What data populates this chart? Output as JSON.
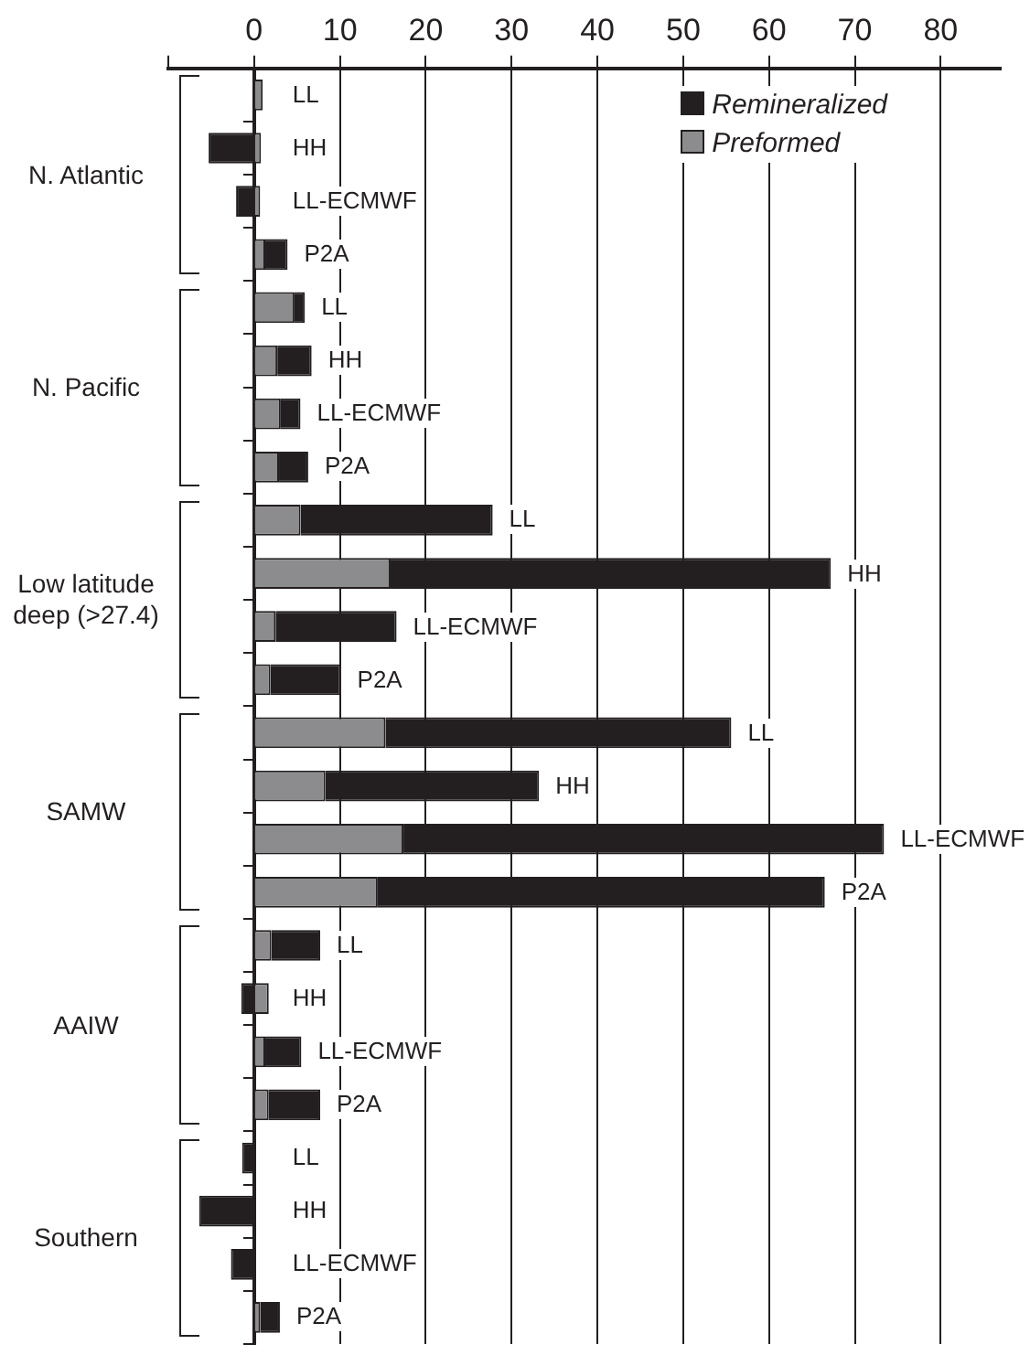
{
  "chart_data": {
    "type": "bar",
    "orientation": "horizontal",
    "stacked": true,
    "categories": [
      "LL",
      "HH",
      "LL-ECMWF",
      "P2A",
      "LL",
      "HH",
      "LL-ECMWF",
      "P2A",
      "LL",
      "HH",
      "LL-ECMWF",
      "P2A",
      "LL",
      "HH",
      "LL-ECMWF",
      "P2A",
      "LL",
      "HH",
      "LL-ECMWF",
      "P2A",
      "LL",
      "HH",
      "LL-ECMWF",
      "P2A"
    ],
    "series": [
      {
        "name": "Preformed",
        "color": "#8c8c8e",
        "values": [
          1.0,
          0.8,
          0.7,
          1.3,
          4.7,
          2.7,
          3.1,
          2.9,
          5.4,
          15.9,
          2.5,
          1.9,
          15.3,
          8.3,
          17.4,
          14.4,
          2.0,
          1.7,
          1.3,
          1.7,
          null,
          0,
          0,
          0.7
        ]
      },
      {
        "name": "Remineralized",
        "color": "#231f20",
        "values": [
          0,
          -5.3,
          -2.1,
          2.6,
          1.2,
          4.0,
          2.3,
          3.4,
          22.4,
          51.3,
          14.1,
          8.2,
          40.3,
          24.9,
          56.0,
          52.1,
          5.7,
          -1.5,
          4.2,
          6.0,
          -1.4,
          -6.4,
          -2.7,
          2.3
        ]
      }
    ],
    "xlim": [
      -10,
      87
    ],
    "xticks": [
      {
        "value": -10,
        "label": null
      },
      0,
      10,
      20,
      30,
      40,
      50,
      60,
      70,
      80
    ],
    "grid": "x",
    "legend": "top right",
    "annotations": [
      "N. Atlantic",
      "N. Pacific",
      "Low latitude deep (>27.4)",
      "SAMW",
      "AAIW",
      "Southern"
    ]
  }
}
